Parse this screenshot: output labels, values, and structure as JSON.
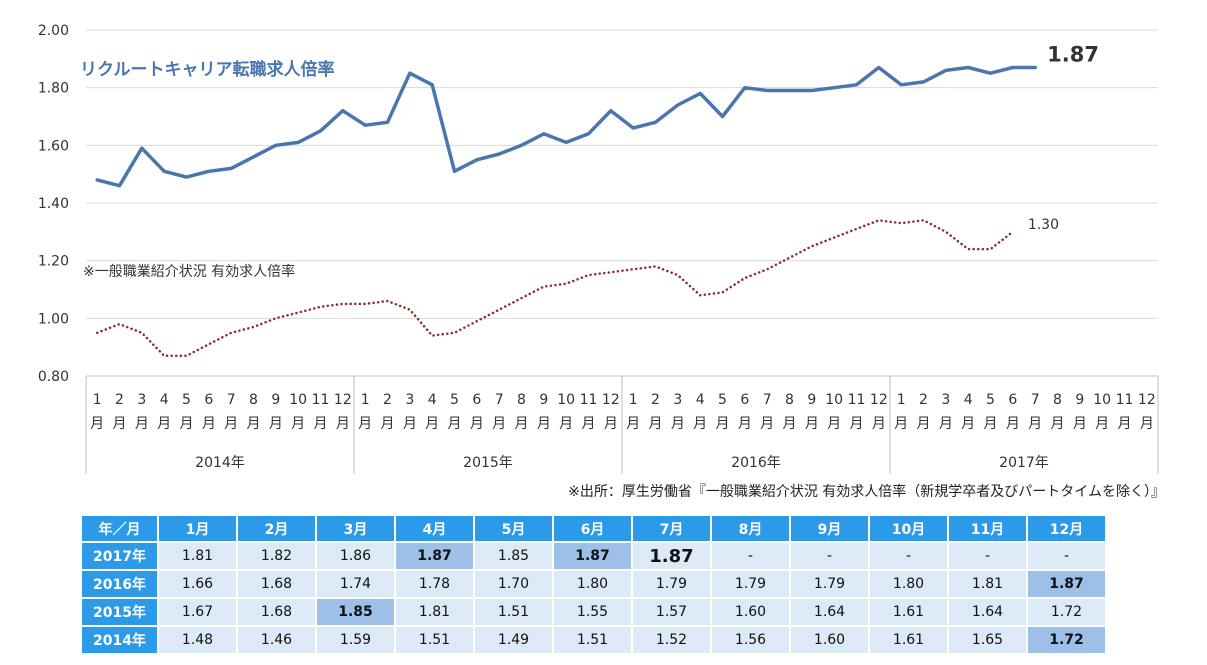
{
  "chart_data": {
    "type": "line",
    "title": "リクルートキャリア転職求人倍率",
    "ylim": [
      0.8,
      2.0
    ],
    "yticks": [
      "0.80",
      "1.00",
      "1.20",
      "1.40",
      "1.60",
      "1.80",
      "2.00"
    ],
    "years": [
      "2014年",
      "2015年",
      "2016年",
      "2017年"
    ],
    "month_numbers": [
      "1",
      "2",
      "3",
      "4",
      "5",
      "6",
      "7",
      "8",
      "9",
      "10",
      "11",
      "12"
    ],
    "month_suffix": "月",
    "series": [
      {
        "name": "リクルートキャリア転職求人倍率",
        "color": "#4a76b0",
        "style": "solid",
        "values": [
          1.48,
          1.46,
          1.59,
          1.51,
          1.49,
          1.51,
          1.52,
          1.56,
          1.6,
          1.61,
          1.65,
          1.72,
          1.67,
          1.68,
          1.85,
          1.81,
          1.51,
          1.55,
          1.57,
          1.6,
          1.64,
          1.61,
          1.64,
          1.72,
          1.66,
          1.68,
          1.74,
          1.78,
          1.7,
          1.8,
          1.79,
          1.79,
          1.79,
          1.8,
          1.81,
          1.87,
          1.81,
          1.82,
          1.86,
          1.87,
          1.85,
          1.87,
          1.87
        ]
      },
      {
        "name": "※一般職業紹介状況 有効求人倍率",
        "color": "#8b2e2b",
        "style": "dotted",
        "values": [
          0.95,
          0.98,
          0.95,
          0.87,
          0.87,
          0.91,
          0.95,
          0.97,
          1.0,
          1.02,
          1.04,
          1.05,
          1.05,
          1.06,
          1.03,
          0.94,
          0.95,
          0.99,
          1.03,
          1.07,
          1.11,
          1.12,
          1.15,
          1.16,
          1.17,
          1.18,
          1.15,
          1.08,
          1.09,
          1.14,
          1.17,
          1.21,
          1.25,
          1.28,
          1.31,
          1.34,
          1.33,
          1.34,
          1.3,
          1.24,
          1.24,
          1.3
        ]
      }
    ],
    "end_labels": {
      "main": "1.87",
      "secondary": "1.30"
    },
    "source": "※出所：厚生労働省『一般職業紹介状況 有効求人倍率（新規学卒者及びパートタイムを除く）』",
    "table": {
      "corner": "年／月",
      "months": [
        "1月",
        "2月",
        "3月",
        "4月",
        "5月",
        "6月",
        "7月",
        "8月",
        "9月",
        "10月",
        "11月",
        "12月"
      ],
      "rows": [
        {
          "year": "2017年",
          "cells": [
            "1.81",
            "1.82",
            "1.86",
            "1.87",
            "1.85",
            "1.87",
            "1.87",
            "-",
            "-",
            "-",
            "-",
            "-"
          ],
          "highlight": [
            3,
            5
          ],
          "big": [
            6
          ]
        },
        {
          "year": "2016年",
          "cells": [
            "1.66",
            "1.68",
            "1.74",
            "1.78",
            "1.70",
            "1.80",
            "1.79",
            "1.79",
            "1.79",
            "1.80",
            "1.81",
            "1.87"
          ],
          "highlight": [
            11
          ],
          "big": []
        },
        {
          "year": "2015年",
          "cells": [
            "1.67",
            "1.68",
            "1.85",
            "1.81",
            "1.51",
            "1.55",
            "1.57",
            "1.60",
            "1.64",
            "1.61",
            "1.64",
            "1.72"
          ],
          "highlight": [
            2
          ],
          "big": []
        },
        {
          "year": "2014年",
          "cells": [
            "1.48",
            "1.46",
            "1.59",
            "1.51",
            "1.49",
            "1.51",
            "1.52",
            "1.56",
            "1.60",
            "1.61",
            "1.65",
            "1.72"
          ],
          "highlight": [
            11
          ],
          "big": []
        }
      ]
    }
  }
}
